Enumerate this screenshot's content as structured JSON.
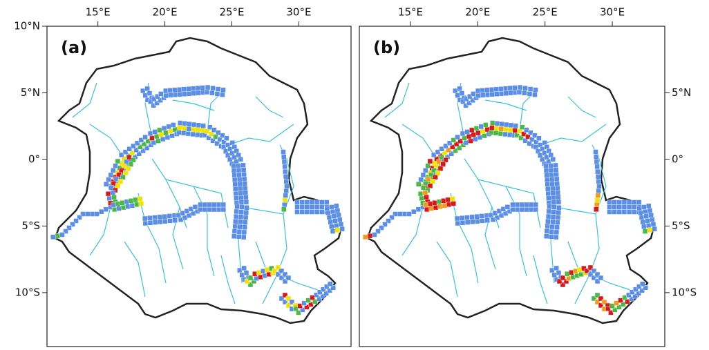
{
  "lon_range": [
    11.2,
    33.9
  ],
  "lat_range": [
    -14.1,
    10
  ],
  "panels": [
    {
      "label": "(a)",
      "lat_side": "left",
      "lon_ticks": [
        {
          "value": 15,
          "label": "15°E"
        },
        {
          "value": 20,
          "label": "20°E"
        },
        {
          "value": 25,
          "label": "25°E"
        },
        {
          "value": 30,
          "label": "30°E"
        }
      ],
      "lat_ticks": [
        {
          "value": 10,
          "label": "10°N"
        },
        {
          "value": 5,
          "label": "5°N"
        },
        {
          "value": 0,
          "label": "0°"
        },
        {
          "value": -5,
          "label": "5°S"
        },
        {
          "value": -10,
          "label": "10°S"
        }
      ]
    },
    {
      "label": "(b)",
      "lat_side": "right",
      "lon_ticks": [
        {
          "value": 15,
          "label": "15°E"
        },
        {
          "value": 20,
          "label": "20°E"
        },
        {
          "value": 25,
          "label": "25°E"
        },
        {
          "value": 30,
          "label": "30°E"
        }
      ],
      "lat_ticks": [
        {
          "value": 5,
          "label": "5°N"
        },
        {
          "value": 0,
          "label": "0°"
        },
        {
          "value": -5,
          "label": "5°S"
        },
        {
          "value": -10,
          "label": "10°S"
        }
      ]
    }
  ]
}
